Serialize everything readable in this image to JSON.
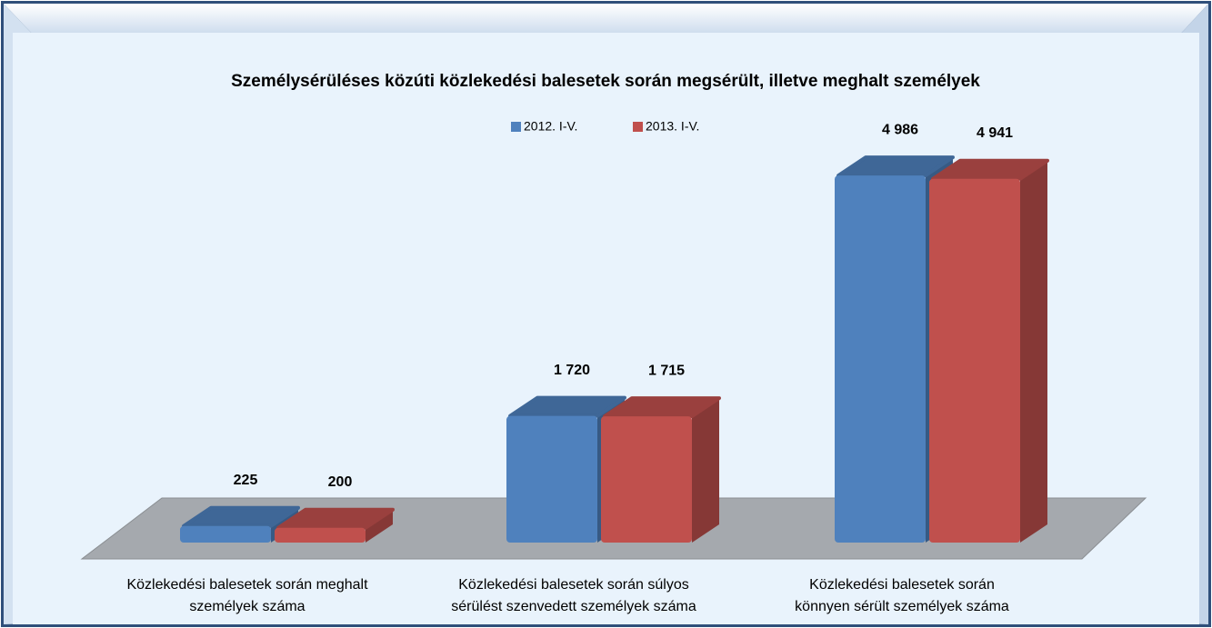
{
  "chart_data": {
    "type": "bar3d",
    "title": "Személysérüléses közúti közlekedési balesetek során megsérült, illetve meghalt személyek",
    "categories": [
      "Közlekedési balesetek során meghalt\nszemélyek száma",
      "Közlekedési balesetek során súlyos\nsérülést szenvedett személyek száma",
      "Közlekedési balesetek során\nkönnyen sérült személyek száma"
    ],
    "series": [
      {
        "name": "2012. I-V.",
        "color": "#4f81bd",
        "values": [
          225,
          1720,
          4986
        ],
        "value_labels": [
          "225",
          "1 720",
          "4 986"
        ]
      },
      {
        "name": "2013. I-V.",
        "color": "#c0504d",
        "values": [
          200,
          1715,
          4941
        ],
        "value_labels": [
          "200",
          "1 715",
          "4 941"
        ]
      }
    ],
    "legend": "top"
  }
}
